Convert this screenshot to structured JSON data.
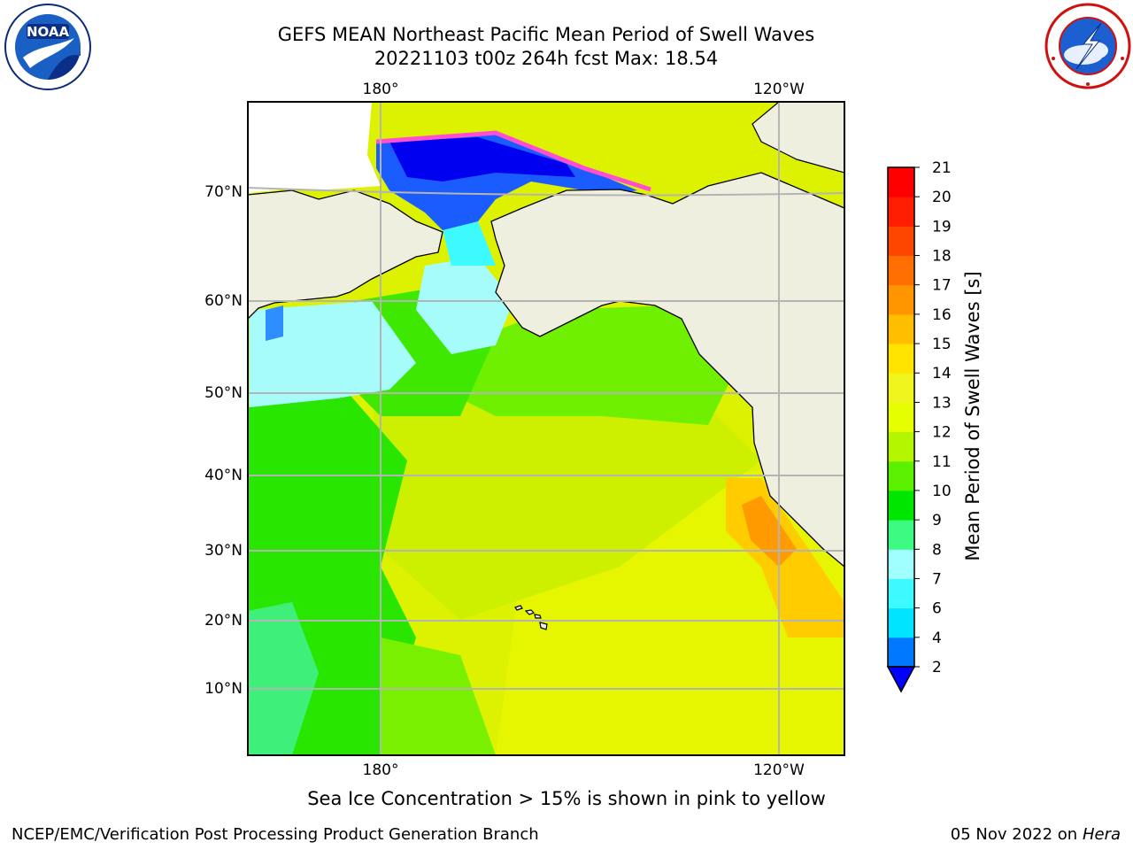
{
  "header": {
    "title": "GEFS MEAN Northeast Pacific Mean Period of Swell Waves",
    "subtitle": "20221103 t00z 264h fcst   Max: 18.54",
    "left_logo": "noaa-logo",
    "right_logo": "national-weather-service-logo"
  },
  "map": {
    "projection": "polar-stereographic",
    "top_lon_labels": [
      "180°",
      "120°W"
    ],
    "bottom_lon_labels": [
      "180°",
      "120°W"
    ],
    "lat_labels": [
      "70°N",
      "60°N",
      "50°N",
      "40°N",
      "30°N",
      "20°N",
      "10°N"
    ],
    "islands": [
      "Hawaii"
    ],
    "colors": {
      "land": "#efefdf",
      "grid": "#b4b4b4",
      "coast": "#000000"
    }
  },
  "colorbar": {
    "label": "Mean Period of Swell Waves [s]",
    "ticks": [
      "2",
      "4",
      "6",
      "7",
      "8",
      "9",
      "10",
      "11",
      "12",
      "13",
      "14",
      "15",
      "16",
      "17",
      "18",
      "19",
      "20",
      "21"
    ],
    "colors": [
      "#0078ff",
      "#00e4ff",
      "#3cfaff",
      "#a0ffff",
      "#3cfa82",
      "#00e600",
      "#5af000",
      "#b4f500",
      "#e6ff00",
      "#f0f51e",
      "#ffe400",
      "#ffbe00",
      "#ff9600",
      "#ff6e00",
      "#ff4600",
      "#ff1e00",
      "#ff0000"
    ],
    "under_color": "#0000ff",
    "extend": "min"
  },
  "footer": {
    "note": "Sea Ice Concentration > 15% is shown in pink to yellow",
    "left": "NCEP/EMC/Verification Post Processing Product Generation Branch",
    "date": "05 Nov 2022 on",
    "machine": "Hera"
  }
}
